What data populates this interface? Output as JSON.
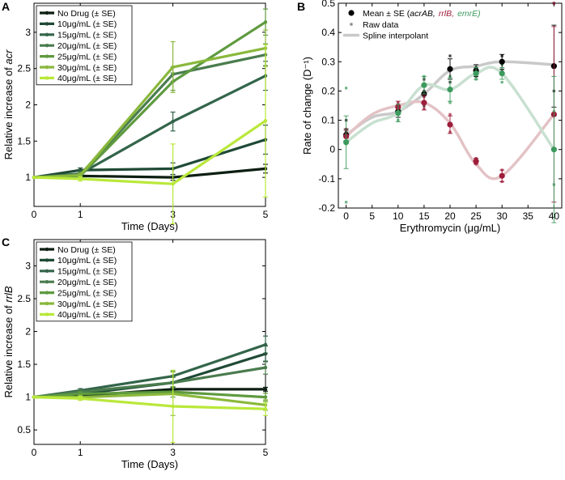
{
  "chart_data": [
    {
      "panel": "A",
      "type": "line",
      "title": "",
      "xlabel": "Time (Days)",
      "ylabel_prefix": "Relative increase of",
      "ylabel_gene": "acr",
      "x": [
        0,
        1,
        3,
        5
      ],
      "xticks": [
        0,
        1,
        3,
        5
      ],
      "yticks": [
        1,
        1.5,
        2,
        2.5,
        3
      ],
      "xlim": [
        0,
        5
      ],
      "ylim": [
        0.6,
        3.4
      ],
      "grid": false,
      "legend_position": "top-left",
      "series": [
        {
          "name": "No Drug (± SE)",
          "color": "#0d1f12",
          "values": [
            1.0,
            1.02,
            1.0,
            1.12
          ],
          "err": [
            0,
            0.02,
            0.04,
            0.06
          ]
        },
        {
          "name": "10μg/mL (± SE)",
          "color": "#1f4a35",
          "values": [
            1.0,
            1.1,
            1.12,
            1.52
          ],
          "err": [
            0,
            0.03,
            0.08,
            0.2
          ]
        },
        {
          "name": "15μg/mL (± SE)",
          "color": "#33654a",
          "values": [
            1.0,
            1.05,
            1.77,
            2.4
          ],
          "err": [
            0,
            0.04,
            0.13,
            0.2
          ]
        },
        {
          "name": "20μg/mL (± SE)",
          "color": "#4a7c4e",
          "values": [
            1.0,
            1.04,
            2.42,
            2.69
          ],
          "err": [
            0,
            0.04,
            0.1,
            0.15
          ]
        },
        {
          "name": "25μg/mL (± SE)",
          "color": "#5e9a3f",
          "values": [
            1.0,
            1.02,
            2.32,
            3.14
          ],
          "err": [
            0,
            0.03,
            0.12,
            0.18
          ]
        },
        {
          "name": "30μg/mL (± SE)",
          "color": "#8ab83c",
          "values": [
            1.0,
            1.03,
            2.52,
            2.78
          ],
          "err": [
            0,
            0.03,
            0.35,
            0.25
          ]
        },
        {
          "name": "40μg/mL (± SE)",
          "color": "#b9e83a",
          "values": [
            1.0,
            0.98,
            0.91,
            1.78
          ],
          "err": [
            0,
            0.03,
            0.55,
            1.05
          ]
        }
      ]
    },
    {
      "panel": "B",
      "type": "scatter",
      "xlabel": "Erythromycin (μg/mL)",
      "ylabel": "Rate of change (D⁻¹)",
      "x": [
        0,
        10,
        15,
        20,
        25,
        30,
        40
      ],
      "xticks": [
        0,
        5,
        10,
        15,
        20,
        25,
        30,
        35,
        40
      ],
      "yticks": [
        -0.2,
        -0.1,
        0,
        0.1,
        0.2,
        0.3,
        0.4,
        0.5
      ],
      "xlim": [
        -1.5,
        41.5
      ],
      "ylim": [
        -0.2,
        0.5
      ],
      "grid": false,
      "legend_position": "top-left",
      "legend": {
        "mean_label_prefix": "Mean ± SE (",
        "mean_label_gene1": "acrAB,",
        "mean_label_gene2": "rrlB,",
        "mean_label_gene3": "emrE)",
        "raw_label": "Raw data",
        "spline_label": "Spline interpolant"
      },
      "series": [
        {
          "name": "acrAB",
          "color": "#000000",
          "spline_color": "#c9c9c9",
          "mean": [
            0.05,
            0.13,
            0.19,
            0.275,
            0.27,
            0.3,
            0.285
          ],
          "err": [
            0.02,
            0.02,
            0.03,
            0.035,
            0.02,
            0.025,
            0.14
          ],
          "raw": [
            [
              0.02,
              0.06,
              0.1
            ],
            [
              0.12,
              0.14
            ],
            [
              0.15,
              0.2,
              0.24
            ],
            [
              0.23,
              0.28,
              0.32
            ],
            [
              0.25,
              0.27,
              0.28
            ],
            [
              0.27,
              0.3,
              0.32
            ],
            [
              0.2,
              0.29,
              0.5
            ]
          ],
          "spline": [
            0.05,
            0.11,
            0.13,
            0.19,
            0.27,
            0.285,
            0.3,
            0.29
          ]
        },
        {
          "name": "rrlB",
          "color": "#9e1d3b",
          "spline_color": "#e3c3c6",
          "mean": [
            0.045,
            0.145,
            0.16,
            0.085,
            -0.04,
            -0.09,
            0.12
          ],
          "err": [
            0.02,
            0.02,
            0.025,
            0.03,
            0.01,
            0.02,
            0.3
          ],
          "raw": [
            [
              0.02,
              0.05,
              0.07
            ],
            [
              0.13,
              0.16
            ],
            [
              0.14,
              0.16,
              0.18
            ],
            [
              0.06,
              0.09,
              0.12
            ],
            [
              -0.05,
              -0.04,
              -0.03
            ],
            [
              -0.11,
              -0.09,
              -0.07
            ],
            [
              0.0,
              0.12,
              0.5
            ]
          ],
          "spline": [
            0.045,
            0.12,
            0.15,
            0.16,
            0.09,
            -0.05,
            -0.09,
            0.12
          ]
        },
        {
          "name": "emrE",
          "color": "#3d9a5e",
          "spline_color": "#c8e0d0",
          "mean": [
            0.025,
            0.125,
            0.22,
            0.205,
            0.26,
            0.26,
            0.0
          ],
          "err": [
            0.09,
            0.03,
            0.03,
            0.04,
            0.02,
            0.02,
            0.25
          ],
          "raw": [
            [
              -0.18,
              0.05,
              0.21
            ],
            [
              0.1,
              0.15
            ],
            [
              0.19,
              0.22,
              0.25
            ],
            [
              0.16,
              0.21,
              0.25
            ],
            [
              0.24,
              0.26,
              0.28
            ],
            [
              0.23,
              0.26,
              0.29
            ],
            [
              -0.12,
              0.0,
              0.13
            ]
          ],
          "spline": [
            0.025,
            0.09,
            0.125,
            0.22,
            0.205,
            0.26,
            0.26,
            0.0
          ]
        }
      ]
    },
    {
      "panel": "C",
      "type": "line",
      "title": "",
      "xlabel": "Time (Days)",
      "ylabel_prefix": "Relative increase of",
      "ylabel_gene": "rrlB",
      "x": [
        0,
        1,
        3,
        5
      ],
      "xticks": [
        0,
        1,
        3,
        5
      ],
      "yticks": [
        0.5,
        1,
        1.5,
        2,
        2.5,
        3
      ],
      "xlim": [
        0,
        5
      ],
      "ylim": [
        0.28,
        3.4
      ],
      "grid": false,
      "legend_position": "top-left",
      "series": [
        {
          "name": "No Drug (± SE)",
          "color": "#0d1f12",
          "values": [
            1.0,
            1.02,
            1.12,
            1.12
          ],
          "err": [
            0,
            0.02,
            0.03,
            0.03
          ]
        },
        {
          "name": "10μg/mL (± SE)",
          "color": "#1f4a35",
          "values": [
            1.0,
            1.05,
            1.22,
            1.66
          ],
          "err": [
            0,
            0.03,
            0.08,
            0.12
          ]
        },
        {
          "name": "15μg/mL (± SE)",
          "color": "#33654a",
          "values": [
            1.0,
            1.1,
            1.32,
            1.8
          ],
          "err": [
            0,
            0.03,
            0.08,
            0.13
          ]
        },
        {
          "name": "20μg/mL (± SE)",
          "color": "#4a7c4e",
          "values": [
            1.0,
            1.08,
            1.22,
            1.45
          ],
          "err": [
            0,
            0.03,
            0.08,
            0.1
          ]
        },
        {
          "name": "25μg/mL (± SE)",
          "color": "#5e9a3f",
          "values": [
            1.0,
            1.05,
            1.08,
            1.0
          ],
          "err": [
            0,
            0.03,
            0.08,
            0.06
          ]
        },
        {
          "name": "30μg/mL (± SE)",
          "color": "#8ab83c",
          "values": [
            1.0,
            1.0,
            1.05,
            0.88
          ],
          "err": [
            0,
            0.03,
            0.33,
            0.08
          ]
        },
        {
          "name": "40μg/mL (± SE)",
          "color": "#b9e83a",
          "values": [
            1.0,
            0.98,
            0.86,
            0.82
          ],
          "err": [
            0,
            0.03,
            0.55,
            0.1
          ]
        }
      ]
    }
  ],
  "panel_labels": {
    "a": "A",
    "b": "B",
    "c": "C"
  }
}
